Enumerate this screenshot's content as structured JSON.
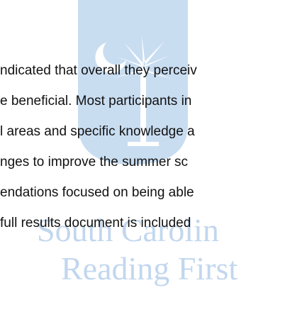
{
  "body": {
    "lines": [
      "ndicated that overall they perceiv",
      "e beneficial. Most participants in",
      "l areas and specific knowledge a",
      "nges to improve the summer sc",
      "endations focused on being able",
      "full results document is included"
    ]
  },
  "watermark": {
    "line1": "South Carolin",
    "line2": "Reading First"
  }
}
